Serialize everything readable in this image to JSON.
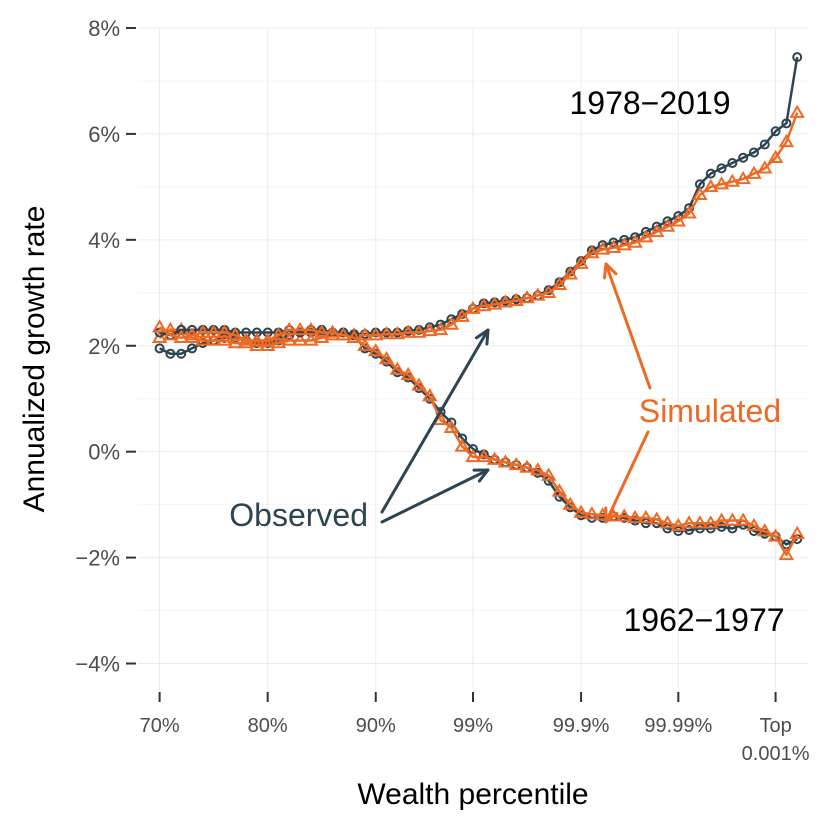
{
  "chart_data": {
    "type": "line",
    "xlabel": "Wealth percentile",
    "ylabel": "Annualized growth rate",
    "ylim": [
      -4.5,
      8
    ],
    "yticks": [
      {
        "value": 8,
        "label": "8%"
      },
      {
        "value": 6,
        "label": "6%"
      },
      {
        "value": 4,
        "label": "4%"
      },
      {
        "value": 2,
        "label": "2%"
      },
      {
        "value": 0,
        "label": "0%"
      },
      {
        "value": -2,
        "label": "−2%"
      },
      {
        "value": -4,
        "label": "−4%"
      }
    ],
    "xticks": [
      {
        "pos": 0,
        "label": "70%"
      },
      {
        "pos": 10,
        "label": "80%"
      },
      {
        "pos": 20,
        "label": "90%"
      },
      {
        "pos": 29,
        "label": "99%"
      },
      {
        "pos": 39,
        "label": "99.9%"
      },
      {
        "pos": 48,
        "label": "99.99%"
      },
      {
        "pos": 57,
        "label": "Top",
        "label2": "0.001%"
      }
    ],
    "colors": {
      "observed": "#2d4452",
      "simulated": "#ee6a24"
    },
    "periods": [
      {
        "name": "1978−2019",
        "observed": [
          1.95,
          1.85,
          1.85,
          1.95,
          2.05,
          2.1,
          2.15,
          2.15,
          2.1,
          2.05,
          2.05,
          2.1,
          2.2,
          2.25,
          2.25,
          2.25,
          2.25,
          2.25,
          2.22,
          2.22,
          2.25,
          2.25,
          2.25,
          2.28,
          2.3,
          2.35,
          2.4,
          2.5,
          2.6,
          2.7,
          2.8,
          2.82,
          2.85,
          2.88,
          2.9,
          2.95,
          3.05,
          3.2,
          3.4,
          3.6,
          3.8,
          3.9,
          3.95,
          4.0,
          4.05,
          4.15,
          4.25,
          4.35,
          4.45,
          4.6,
          5.05,
          5.25,
          5.35,
          5.45,
          5.55,
          5.65,
          5.8,
          6.05,
          6.2,
          7.45
        ],
        "simulated": [
          2.15,
          2.3,
          2.3,
          2.15,
          2.1,
          2.1,
          2.1,
          2.05,
          2.05,
          2.0,
          2.0,
          2.05,
          2.1,
          2.1,
          2.1,
          2.15,
          2.2,
          2.2,
          2.2,
          2.2,
          2.2,
          2.22,
          2.22,
          2.25,
          2.25,
          2.28,
          2.3,
          2.4,
          2.55,
          2.7,
          2.75,
          2.78,
          2.82,
          2.85,
          2.9,
          2.95,
          3.0,
          3.15,
          3.35,
          3.55,
          3.75,
          3.82,
          3.85,
          3.9,
          3.95,
          4.05,
          4.15,
          4.25,
          4.35,
          4.5,
          4.85,
          5.0,
          5.05,
          5.1,
          5.15,
          5.25,
          5.35,
          5.55,
          5.85,
          6.4
        ]
      },
      {
        "name": "1962−1977",
        "observed": [
          2.25,
          2.2,
          2.3,
          2.3,
          2.3,
          2.3,
          2.3,
          2.25,
          2.25,
          2.25,
          2.25,
          2.25,
          2.3,
          2.25,
          2.3,
          2.3,
          2.25,
          2.25,
          2.2,
          1.95,
          1.85,
          1.7,
          1.5,
          1.4,
          1.2,
          1.0,
          0.75,
          0.55,
          0.25,
          0.05,
          -0.05,
          -0.15,
          -0.2,
          -0.25,
          -0.3,
          -0.4,
          -0.55,
          -0.85,
          -1.05,
          -1.2,
          -1.25,
          -1.25,
          -1.22,
          -1.25,
          -1.3,
          -1.35,
          -1.35,
          -1.45,
          -1.5,
          -1.48,
          -1.45,
          -1.45,
          -1.42,
          -1.45,
          -1.38,
          -1.5,
          -1.55,
          -1.6,
          -1.75,
          -1.65
        ],
        "simulated": [
          2.35,
          2.2,
          2.15,
          2.2,
          2.25,
          2.25,
          2.25,
          2.2,
          2.1,
          2.1,
          2.1,
          2.2,
          2.3,
          2.3,
          2.3,
          2.25,
          2.25,
          2.2,
          2.15,
          2.0,
          1.9,
          1.75,
          1.55,
          1.45,
          1.25,
          1.05,
          0.6,
          0.45,
          0.1,
          -0.1,
          -0.1,
          -0.15,
          -0.2,
          -0.25,
          -0.3,
          -0.35,
          -0.45,
          -0.75,
          -1.0,
          -1.15,
          -1.18,
          -1.2,
          -1.22,
          -1.22,
          -1.25,
          -1.25,
          -1.28,
          -1.35,
          -1.4,
          -1.35,
          -1.35,
          -1.35,
          -1.3,
          -1.3,
          -1.3,
          -1.4,
          -1.5,
          -1.6,
          -1.95,
          -1.55
        ]
      }
    ],
    "annotations": {
      "observed_label": "Observed",
      "simulated_label": "Simulated",
      "period_late": "1978−2019",
      "period_early": "1962−1977"
    }
  }
}
